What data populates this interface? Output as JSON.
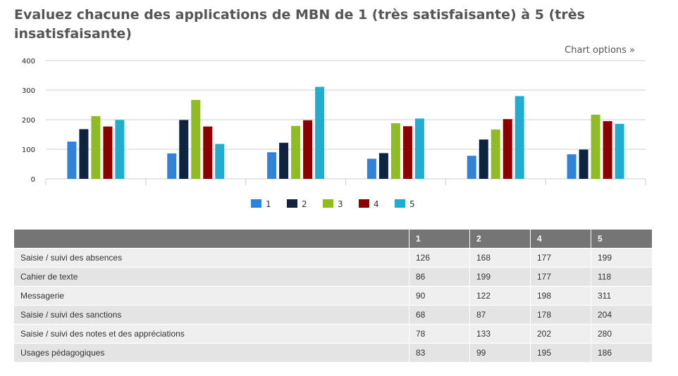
{
  "title": "Evaluez chacune des applications de MBN de 1 (très satisfaisante) à 5 (très insatisfaisante)",
  "chart_options_label": "Chart options »",
  "chart_data": {
    "type": "bar",
    "categories": [
      "Saisie / suivi des absences",
      "Cahier de texte",
      "Messagerie",
      "Saisie / suivi des sanctions",
      "Saisie / suivi des notes et des appréciations",
      "Usages pédagogiques"
    ],
    "ylim": [
      0,
      400
    ],
    "yticks": [
      "0",
      "100",
      "200",
      "300",
      "400"
    ],
    "grid": true,
    "legend_position": "bottom",
    "series": [
      {
        "name": "1",
        "color": "#3182d9",
        "values": [
          126,
          86,
          90,
          68,
          78,
          83
        ]
      },
      {
        "name": "2",
        "color": "#0f243e",
        "values": [
          168,
          199,
          122,
          87,
          133,
          99
        ]
      },
      {
        "name": "3",
        "color": "#8fbc23",
        "values": [
          212,
          267,
          179,
          188,
          167,
          217
        ]
      },
      {
        "name": "4",
        "color": "#8e0000",
        "values": [
          177,
          177,
          198,
          178,
          202,
          195
        ]
      },
      {
        "name": "5",
        "color": "#1faecf",
        "values": [
          199,
          118,
          311,
          204,
          280,
          186
        ]
      }
    ]
  },
  "table": {
    "headers": [
      "",
      "1",
      "2",
      "4",
      "5"
    ],
    "rows": [
      [
        "Saisie / suivi des absences",
        "126",
        "168",
        "177",
        "199"
      ],
      [
        "Cahier de texte",
        "86",
        "199",
        "177",
        "118"
      ],
      [
        "Messagerie",
        "90",
        "122",
        "198",
        "311"
      ],
      [
        "Saisie / suivi des sanctions",
        "68",
        "87",
        "178",
        "204"
      ],
      [
        "Saisie / suivi des notes et des appréciations",
        "78",
        "133",
        "202",
        "280"
      ],
      [
        "Usages pédagogiques",
        "83",
        "99",
        "195",
        "186"
      ]
    ]
  }
}
